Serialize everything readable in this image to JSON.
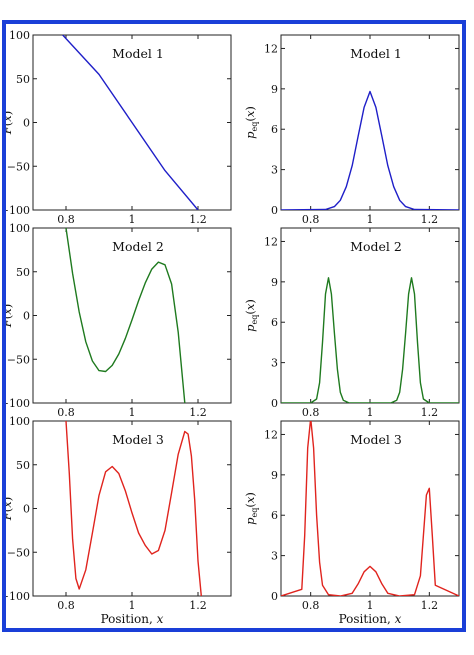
{
  "header_fragment": "",
  "footer_fragment": "",
  "colors": {
    "frame": "#1a3fd8",
    "model1": "#1f1fc8",
    "model2": "#1f7a1f",
    "model3": "#e0241e"
  },
  "chart_data": [
    {
      "type": "line",
      "panel": "left-1",
      "title": "Model 1",
      "ylabel": "F(x)",
      "xlim": [
        0.7,
        1.3
      ],
      "ylim": [
        -100,
        100
      ],
      "yticks": [
        "100",
        "50",
        "0",
        "−50",
        "−100"
      ],
      "ytick_values": [
        100,
        50,
        0,
        -50,
        -100
      ],
      "xticks": [
        "0.8",
        "1",
        "1.2"
      ],
      "xtick_values": [
        0.8,
        1.0,
        1.2
      ],
      "xlabel": "",
      "series": [
        {
          "color": "#1f1fc8",
          "x": [
            0.79,
            0.9,
            1.0,
            1.1,
            1.2
          ],
          "y": [
            100,
            55,
            0,
            -55,
            -100
          ]
        }
      ]
    },
    {
      "type": "line",
      "panel": "right-1",
      "title": "Model 1",
      "ylabel": "p_eq(x)",
      "xlim": [
        0.7,
        1.3
      ],
      "ylim": [
        0,
        13
      ],
      "yticks": [
        "12",
        "9",
        "6",
        "3",
        "0"
      ],
      "ytick_values": [
        12,
        9,
        6,
        3,
        0
      ],
      "xticks": [
        "0.8",
        "1",
        "1.2"
      ],
      "xtick_values": [
        0.8,
        1.0,
        1.2
      ],
      "xlabel": "",
      "series": [
        {
          "color": "#1f1fc8",
          "x": [
            0.7,
            0.85,
            0.88,
            0.9,
            0.92,
            0.94,
            0.96,
            0.98,
            1.0,
            1.02,
            1.04,
            1.06,
            1.08,
            1.1,
            1.12,
            1.15,
            1.3
          ],
          "y": [
            0,
            0.04,
            0.25,
            0.72,
            1.73,
            3.3,
            5.47,
            7.62,
            8.8,
            7.62,
            5.47,
            3.3,
            1.73,
            0.72,
            0.25,
            0.04,
            0
          ]
        }
      ]
    },
    {
      "type": "line",
      "panel": "left-2",
      "title": "Model 2",
      "ylabel": "F(x)",
      "xlim": [
        0.7,
        1.3
      ],
      "ylim": [
        -100,
        100
      ],
      "yticks": [
        "100",
        "50",
        "0",
        "−50",
        "−100"
      ],
      "ytick_values": [
        100,
        50,
        0,
        -50,
        -100
      ],
      "xticks": [
        "0.8",
        "1",
        "1.2"
      ],
      "xtick_values": [
        0.8,
        1.0,
        1.2
      ],
      "xlabel": "",
      "series": [
        {
          "color": "#1f7a1f",
          "x": [
            0.8,
            0.82,
            0.84,
            0.86,
            0.88,
            0.9,
            0.92,
            0.94,
            0.96,
            0.98,
            1.0,
            1.02,
            1.04,
            1.06,
            1.08,
            1.1,
            1.12,
            1.14,
            1.16
          ],
          "y": [
            100,
            48,
            4,
            -30,
            -52,
            -63,
            -64,
            -57,
            -44,
            -26,
            -5,
            17,
            37,
            53,
            61,
            58,
            36,
            -19,
            -100
          ]
        }
      ]
    },
    {
      "type": "line",
      "panel": "right-2",
      "title": "Model 2",
      "ylabel": "p_eq(x)",
      "xlim": [
        0.7,
        1.3
      ],
      "ylim": [
        0,
        13
      ],
      "yticks": [
        "12",
        "9",
        "6",
        "3",
        "0"
      ],
      "ytick_values": [
        12,
        9,
        6,
        3,
        0
      ],
      "xticks": [
        "0.8",
        "1",
        "1.2"
      ],
      "xtick_values": [
        0.8,
        1.0,
        1.2
      ],
      "xlabel": "",
      "series": [
        {
          "color": "#1f7a1f",
          "x": [
            0.7,
            0.8,
            0.82,
            0.83,
            0.84,
            0.85,
            0.86,
            0.87,
            0.88,
            0.89,
            0.9,
            0.91,
            0.93,
            0.96,
            1.04,
            1.07,
            1.09,
            1.1,
            1.11,
            1.12,
            1.13,
            1.14,
            1.15,
            1.16,
            1.17,
            1.18,
            1.2,
            1.3
          ],
          "y": [
            0,
            0,
            0.3,
            1.5,
            4.5,
            8.1,
            9.3,
            8.1,
            5.2,
            2.5,
            0.8,
            0.2,
            0,
            0,
            0,
            0,
            0.2,
            0.8,
            2.5,
            5.2,
            8.1,
            9.3,
            8.1,
            4.5,
            1.5,
            0.3,
            0,
            0
          ]
        }
      ]
    },
    {
      "type": "line",
      "panel": "left-3",
      "title": "Model 3",
      "ylabel": "F(x)",
      "xlim": [
        0.7,
        1.3
      ],
      "ylim": [
        -100,
        100
      ],
      "yticks": [
        "100",
        "50",
        "0",
        "−50",
        "−100"
      ],
      "ytick_values": [
        100,
        50,
        0,
        -50,
        -100
      ],
      "xticks": [
        "0.8",
        "1",
        "1.2"
      ],
      "xtick_values": [
        0.8,
        1.0,
        1.2
      ],
      "xlabel": "Position, x",
      "series": [
        {
          "color": "#e0241e",
          "x": [
            0.8,
            0.81,
            0.82,
            0.83,
            0.84,
            0.86,
            0.88,
            0.9,
            0.92,
            0.94,
            0.96,
            0.98,
            1.0,
            1.02,
            1.04,
            1.06,
            1.08,
            1.1,
            1.12,
            1.14,
            1.16,
            1.17,
            1.18,
            1.19,
            1.2,
            1.21
          ],
          "y": [
            100,
            40,
            -35,
            -80,
            -92,
            -70,
            -28,
            15,
            42,
            48,
            40,
            20,
            -5,
            -28,
            -42,
            -52,
            -48,
            -25,
            18,
            62,
            88,
            85,
            60,
            10,
            -60,
            -100
          ]
        }
      ]
    },
    {
      "type": "line",
      "panel": "right-3",
      "title": "Model 3",
      "ylabel": "p_eq(x)",
      "xlim": [
        0.7,
        1.3
      ],
      "ylim": [
        0,
        13
      ],
      "yticks": [
        "12",
        "9",
        "6",
        "3",
        "0"
      ],
      "ytick_values": [
        12,
        9,
        6,
        3,
        0
      ],
      "xticks": [
        "0.8",
        "1",
        "1.2"
      ],
      "xtick_values": [
        0.8,
        1.0,
        1.2
      ],
      "xlabel": "Position, x",
      "series": [
        {
          "color": "#e0241e",
          "x": [
            0.7,
            0.77,
            0.78,
            0.79,
            0.8,
            0.81,
            0.82,
            0.83,
            0.84,
            0.86,
            0.9,
            0.94,
            0.96,
            0.98,
            1.0,
            1.02,
            1.04,
            1.06,
            1.1,
            1.15,
            1.17,
            1.18,
            1.19,
            1.2,
            1.21,
            1.22,
            1.3
          ],
          "y": [
            0,
            0.5,
            4.5,
            11,
            13.2,
            11,
            6,
            2.5,
            0.8,
            0.1,
            0,
            0.2,
            0.9,
            1.8,
            2.2,
            1.8,
            0.9,
            0.2,
            0,
            0.1,
            1.5,
            4.5,
            7.5,
            8.0,
            4.5,
            0.8,
            0
          ]
        }
      ]
    }
  ]
}
